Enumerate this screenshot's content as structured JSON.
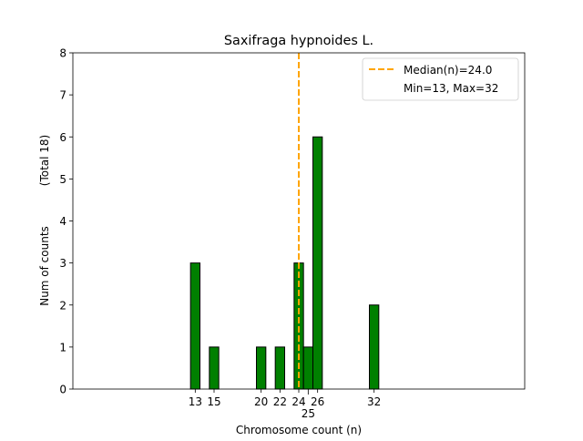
{
  "chart_data": {
    "type": "bar",
    "title": "Saxifraga hypnoides L.",
    "xlabel": "Chromosome count (n)",
    "ylabel": "Num of counts",
    "ylabel_secondary": "(Total 18)",
    "x": [
      13,
      15,
      20,
      22,
      24,
      25,
      26,
      32
    ],
    "values": [
      3,
      1,
      1,
      1,
      3,
      1,
      6,
      2
    ],
    "xticks": [
      "13",
      "15",
      "20",
      "22",
      "24",
      "25",
      "26",
      "32"
    ],
    "yticks": [
      "0",
      "1",
      "2",
      "3",
      "4",
      "5",
      "6",
      "7",
      "8"
    ],
    "xlim": [
      0,
      48
    ],
    "ylim": [
      0,
      8
    ],
    "grid": false,
    "bar_color": "#008000",
    "median": 24.0,
    "median_color": "#FFA500",
    "legend": {
      "placement": "top-right",
      "entries": [
        "Median(n)=24.0",
        "Min=13, Max=32"
      ]
    }
  }
}
